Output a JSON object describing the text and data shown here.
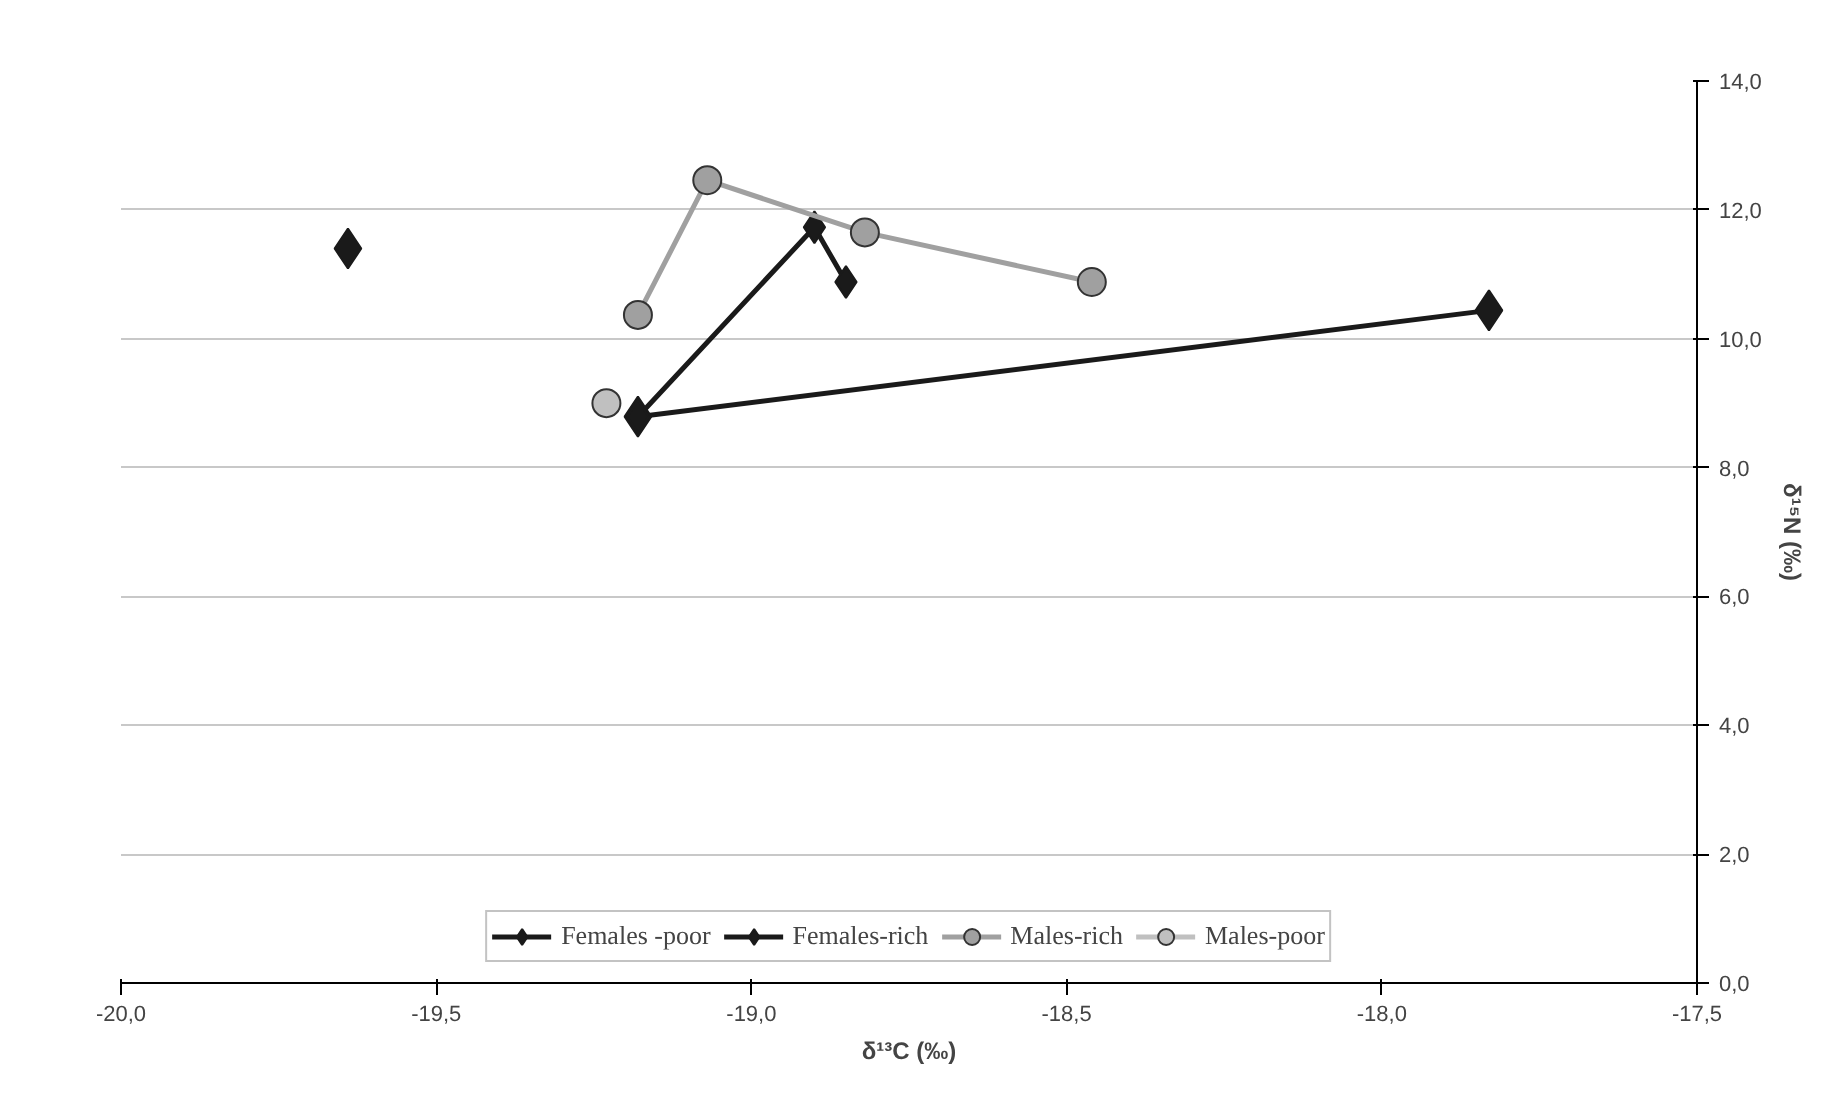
{
  "chart_data": {
    "type": "line",
    "xlabel": "δ¹³C (‰)",
    "ylabel": "δ¹⁵N (‰)",
    "xlim": [
      -20,
      -17.5
    ],
    "ylim": [
      0,
      14
    ],
    "xticks": [
      {
        "value": -20,
        "label": "-20,0"
      },
      {
        "value": -19.5,
        "label": "-19,5"
      },
      {
        "value": -19,
        "label": "-19,0"
      },
      {
        "value": -18.5,
        "label": "-18,5"
      },
      {
        "value": -18,
        "label": "-18,0"
      },
      {
        "value": -17.5,
        "label": "-17,5"
      }
    ],
    "yticks": [
      {
        "value": 0,
        "label": "0,0"
      },
      {
        "value": 2,
        "label": "2,0"
      },
      {
        "value": 4,
        "label": "4,0"
      },
      {
        "value": 6,
        "label": "6,0"
      },
      {
        "value": 8,
        "label": "8,0"
      },
      {
        "value": 10,
        "label": "10,0"
      },
      {
        "value": 12,
        "label": "12,0"
      },
      {
        "value": 14,
        "label": "14,0"
      }
    ],
    "grid": "y",
    "legend": "bottom",
    "line_style": "solid",
    "series": [
      {
        "name": "Females -poor",
        "color": "#1a1a1a",
        "marker": "diamond",
        "x": [
          -19.64,
          null,
          -19.18,
          -17.83
        ],
        "values": [
          11.4,
          null,
          8.79,
          10.44
        ]
      },
      {
        "name": "Females-rich",
        "color": "#1a1a1a",
        "marker": "diamond",
        "x": [
          -19.18,
          -18.9,
          -18.85
        ],
        "values": [
          8.79,
          11.73,
          10.88
        ]
      },
      {
        "name": "Males-rich",
        "color": "#a0a0a0",
        "marker": "circle",
        "x": [
          -19.18,
          -19.07,
          -18.82,
          -18.46
        ],
        "values": [
          10.37,
          12.46,
          11.65,
          10.88
        ]
      },
      {
        "name": "Males-poor",
        "color": "#c0c0c0",
        "marker": "circle",
        "x": [
          -19.23
        ],
        "values": [
          9.0
        ]
      }
    ]
  }
}
